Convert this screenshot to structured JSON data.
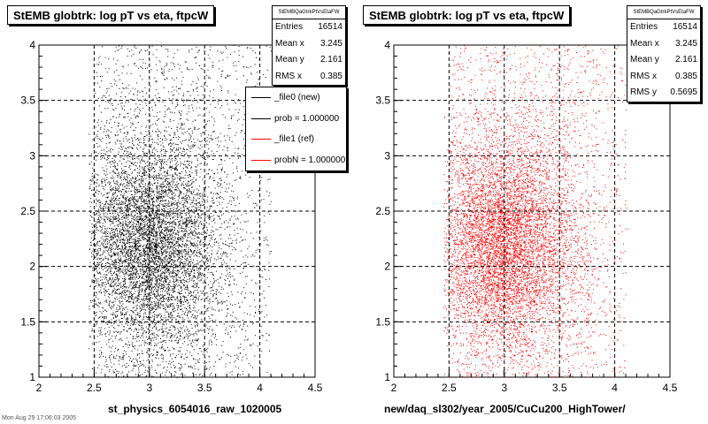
{
  "chart_data": [
    {
      "type": "scatter",
      "title": "StEMB globtrk: log pT vs eta, ftpcW",
      "xlabel": "st_physics_6054016_raw_1020005",
      "ylabel": "",
      "xlim": [
        2,
        4.5
      ],
      "ylim": [
        1,
        4
      ],
      "xticks": [
        "2",
        "2.5",
        "3",
        "3.5",
        "4",
        "4.5"
      ],
      "yticks": [
        "1",
        "1.5",
        "2",
        "2.5",
        "3",
        "3.5",
        "4"
      ],
      "grid": true,
      "point_color": "#000000",
      "density": {
        "center_x": 3.0,
        "center_y": 2.2,
        "x_range": [
          2.5,
          4.1
        ],
        "y_range": [
          1,
          4
        ]
      },
      "stats": {
        "name": "StEMBQaGtrkPtVsEtaFW",
        "rows": [
          {
            "label": "Entries",
            "value": "16514"
          },
          {
            "label": "Mean x",
            "value": "3.245"
          },
          {
            "label": "Mean y",
            "value": "2.161"
          },
          {
            "label": "RMS x",
            "value": "0.385"
          }
        ]
      },
      "legend": {
        "placement": "top-right",
        "entries": [
          {
            "label": "_file0 (new)",
            "color": "#000000"
          },
          {
            "label": "prob = 1.000000",
            "color": "#000000"
          },
          {
            "label": "_file1 (ref)",
            "color": "#ff0000"
          },
          {
            "label": "probN = 1.000000",
            "color": "#ff0000"
          }
        ]
      }
    },
    {
      "type": "scatter",
      "title": "StEMB globtrk: log pT vs eta, ftpcW",
      "xlabel": "new/daq_sl302/year_2005/CuCu200_HighTower/",
      "ylabel": "",
      "xlim": [
        2,
        4.5
      ],
      "ylim": [
        1,
        4
      ],
      "xticks": [
        "2",
        "2.5",
        "3",
        "3.5",
        "4",
        "4.5"
      ],
      "yticks": [
        "1",
        "1.5",
        "2",
        "2.5",
        "3",
        "3.5",
        "4"
      ],
      "grid": true,
      "point_color": "#ff0000",
      "density": {
        "center_x": 3.0,
        "center_y": 2.2,
        "x_range": [
          2.5,
          4.1
        ],
        "y_range": [
          1,
          4
        ]
      },
      "stats": {
        "name": "StEMBQaGtrkPtVsEtaFW",
        "rows": [
          {
            "label": "Entries",
            "value": "16514"
          },
          {
            "label": "Mean x",
            "value": "3.245"
          },
          {
            "label": "Mean y",
            "value": "2.161"
          },
          {
            "label": "RMS x",
            "value": "0.385"
          },
          {
            "label": "RMS y",
            "value": "0.5695"
          }
        ]
      }
    }
  ],
  "footer": "Mon Aug 29 17:06:03 2005"
}
